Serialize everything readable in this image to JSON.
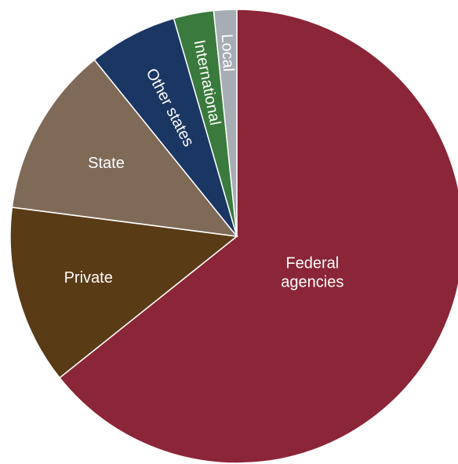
{
  "chart_data": {
    "type": "pie",
    "title": "",
    "start": "12 o'clock",
    "direction": "clockwise",
    "slices": [
      {
        "label": "Federal agencies",
        "value": 63.0,
        "color": "#8b2538"
      },
      {
        "label": "Private",
        "value": 12.5,
        "color": "#593b16"
      },
      {
        "label": "State",
        "value": 11.9,
        "color": "#7f6a58"
      },
      {
        "label": "Other states",
        "value": 6.2,
        "color": "#1a3663"
      },
      {
        "label": "International",
        "value": 2.8,
        "color": "#3a7a3c"
      },
      {
        "label": "Local",
        "value": 1.6,
        "color": "#a6adb4"
      }
    ]
  }
}
